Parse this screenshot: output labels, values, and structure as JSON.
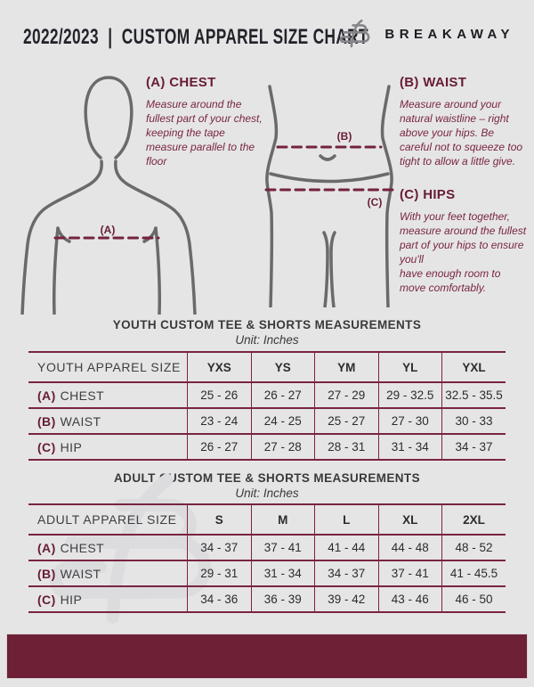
{
  "meta": {
    "background": "#e5e5e6",
    "accent_maroon": "#6e2037",
    "table_line_color": "#7a2440",
    "figure_gray": "#6a6a6c",
    "title_color": "#23232a"
  },
  "header": {
    "title": "2022/2023  |  CUSTOM APPAREL SIZE CHART",
    "brand": "BREAKAWAY",
    "logo_icon": "breakaway-b-logo"
  },
  "guide": {
    "chest": {
      "marker": "(A)",
      "heading": "(A) CHEST",
      "body": "Measure around the fullest part of your chest, keeping the tape measure parallel to the floor"
    },
    "waist": {
      "marker": "(B)",
      "heading": "(B) WAIST",
      "body": "Measure around your natural waistline – right above your hips. Be careful not to squeeze too tight to allow a little give."
    },
    "hips": {
      "marker": "(C)",
      "heading": "(C) HIPS",
      "body": "With your feet together, measure around the fullest part of your hips to ensure you'll\nhave enough room to move comfortably."
    }
  },
  "youth_table": {
    "title": "YOUTH CUSTOM TEE & SHORTS MEASUREMENTS",
    "unit": "Unit: Inches",
    "header": [
      "YOUTH APPAREL SIZE",
      "YXS",
      "YS",
      "YM",
      "YL",
      "YXL"
    ],
    "rows": [
      {
        "prefix": "(A)",
        "label": "CHEST",
        "values": [
          "25 - 26",
          "26 - 27",
          "27 - 29",
          "29 - 32.5",
          "32.5 - 35.5"
        ]
      },
      {
        "prefix": "(B)",
        "label": "WAIST",
        "values": [
          "23 - 24",
          "24 - 25",
          "25 - 27",
          "27 - 30",
          "30 - 33"
        ]
      },
      {
        "prefix": "(C)",
        "label": "HIP",
        "values": [
          "26 - 27",
          "27 - 28",
          "28 - 31",
          "31 - 34",
          "34 - 37"
        ]
      }
    ]
  },
  "adult_table": {
    "title": "ADULT CUSTOM TEE & SHORTS MEASUREMENTS",
    "unit": "Unit: Inches",
    "header": [
      "ADULT APPAREL SIZE",
      "S",
      "M",
      "L",
      "XL",
      "2XL"
    ],
    "rows": [
      {
        "prefix": "(A)",
        "label": "CHEST",
        "values": [
          "34 - 37",
          "37 - 41",
          "41 - 44",
          "44 - 48",
          "48 - 52"
        ]
      },
      {
        "prefix": "(B)",
        "label": "WAIST",
        "values": [
          "29 - 31",
          "31 - 34",
          "34 - 37",
          "37 - 41",
          "41 - 45.5"
        ]
      },
      {
        "prefix": "(C)",
        "label": "HIP",
        "values": [
          "34 - 36",
          "36 - 39",
          "39 - 42",
          "43 - 46",
          "46 - 50"
        ]
      }
    ]
  }
}
